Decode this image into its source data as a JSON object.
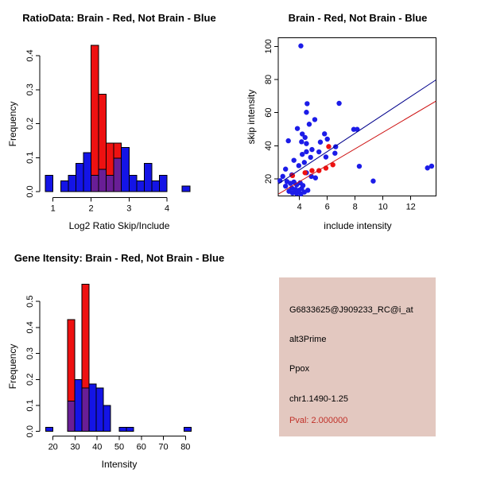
{
  "figure": {
    "background": "#FFFFFF",
    "colors": {
      "hist_red": "#EE1111",
      "hist_blue": "#1414E6",
      "overlap_purple": "#691E96",
      "point_blue": "#1C1CE8",
      "point_red": "#EE1111",
      "line_blue": "#00008B",
      "line_red": "#CD1010",
      "axis": "#000000",
      "info_bg": "#E3C8C0",
      "pval_red": "#C03028"
    }
  },
  "chart_data": [
    {
      "type": "bar",
      "subtype": "overlaid-histogram",
      "panel": "top-left",
      "title": "RatioData: Brain - Red, Not Brain - Blue",
      "xlabel": "Log2 Ratio Skip/Include",
      "ylabel": "Frequency",
      "legend": "Brain = red, Not Brain = blue (encoded in title)",
      "grid": false,
      "xticks": [
        1,
        2,
        3,
        4
      ],
      "ytick_labels": [
        "0.0",
        "0.1",
        "0.2",
        "0.3",
        "0.4"
      ],
      "xlim": [
        0.65,
        5.0
      ],
      "ylim": [
        0,
        0.45
      ],
      "bins": [
        {
          "x0": 0.8,
          "x1": 1.0,
          "blue": 0.048
        },
        {
          "x0": 1.2,
          "x1": 1.4,
          "blue": 0.032
        },
        {
          "x0": 1.4,
          "x1": 1.6,
          "blue": 0.048
        },
        {
          "x0": 1.6,
          "x1": 1.8,
          "blue": 0.083
        },
        {
          "x0": 1.8,
          "x1": 2.0,
          "blue": 0.115
        },
        {
          "x0": 2.0,
          "x1": 2.2,
          "red": 0.43,
          "blue": 0.048
        },
        {
          "x0": 2.2,
          "x1": 2.4,
          "red": 0.287,
          "blue": 0.066
        },
        {
          "x0": 2.4,
          "x1": 2.6,
          "red": 0.143,
          "blue": 0.048
        },
        {
          "x0": 2.6,
          "x1": 2.8,
          "red": 0.143,
          "blue": 0.098
        },
        {
          "x0": 2.8,
          "x1": 3.0,
          "blue": 0.13
        },
        {
          "x0": 3.0,
          "x1": 3.2,
          "blue": 0.048
        },
        {
          "x0": 3.2,
          "x1": 3.4,
          "blue": 0.032
        },
        {
          "x0": 3.4,
          "x1": 3.6,
          "blue": 0.083
        },
        {
          "x0": 3.6,
          "x1": 3.8,
          "blue": 0.032
        },
        {
          "x0": 3.8,
          "x1": 4.0,
          "blue": 0.048
        },
        {
          "x0": 4.4,
          "x1": 4.6,
          "blue": 0.016
        }
      ]
    },
    {
      "type": "scatter",
      "panel": "top-right",
      "title": "Brain - Red, Not Brain - Blue",
      "xlabel": "include intensity",
      "ylabel": "skip intensity",
      "grid": false,
      "xticks": [
        4,
        6,
        8,
        10,
        12
      ],
      "yticks": [
        20,
        40,
        60,
        80,
        100
      ],
      "xlim": [
        2.47,
        13.85
      ],
      "ylim": [
        9.7,
        105.5
      ],
      "series": [
        {
          "name": "Not Brain",
          "color_key": "point_blue",
          "points": [
            [
              4.1,
              100.3
            ],
            [
              4.55,
              65.4
            ],
            [
              6.85,
              65.6
            ],
            [
              4.5,
              60.2
            ],
            [
              5.1,
              55.8
            ],
            [
              4.7,
              53.0
            ],
            [
              3.85,
              50.4
            ],
            [
              7.9,
              49.9
            ],
            [
              8.15,
              49.9
            ],
            [
              4.2,
              47.1
            ],
            [
              5.8,
              47.2
            ],
            [
              4.4,
              45.0
            ],
            [
              6.0,
              44.0
            ],
            [
              3.2,
              43.0
            ],
            [
              4.15,
              42.4
            ],
            [
              5.5,
              42.2
            ],
            [
              4.5,
              41.3
            ],
            [
              6.6,
              39.4
            ],
            [
              4.9,
              37.7
            ],
            [
              4.5,
              36.4
            ],
            [
              5.4,
              36.3
            ],
            [
              6.55,
              35.5
            ],
            [
              4.2,
              34.8
            ],
            [
              5.9,
              33.2
            ],
            [
              4.8,
              33.0
            ],
            [
              3.6,
              31.2
            ],
            [
              4.35,
              29.9
            ],
            [
              3.95,
              28.0
            ],
            [
              8.3,
              27.6
            ],
            [
              13.5,
              27.7
            ],
            [
              13.2,
              26.6
            ],
            [
              3.0,
              25.9
            ],
            [
              4.5,
              23.7
            ],
            [
              3.45,
              22.4
            ],
            [
              2.8,
              21.5
            ],
            [
              4.85,
              21.5
            ],
            [
              5.15,
              20.6
            ],
            [
              2.6,
              18.9
            ],
            [
              9.3,
              18.7
            ],
            [
              3.1,
              18.4
            ],
            [
              3.6,
              18.1
            ],
            [
              4.05,
              17.6
            ],
            [
              3.8,
              16.4
            ],
            [
              4.25,
              16.0
            ],
            [
              3.0,
              15.6
            ],
            [
              3.35,
              17.3
            ],
            [
              3.45,
              14.4
            ],
            [
              4.15,
              14.1
            ],
            [
              3.7,
              13.6
            ],
            [
              3.95,
              13.1
            ],
            [
              4.6,
              13.1
            ],
            [
              3.25,
              12.5
            ],
            [
              4.35,
              12.0
            ],
            [
              3.5,
              11.5
            ],
            [
              3.8,
              11.2
            ],
            [
              4.1,
              10.9
            ]
          ]
        },
        {
          "name": "Brain",
          "color_key": "point_red",
          "points": [
            [
              3.5,
              22.0
            ],
            [
              4.4,
              23.7
            ],
            [
              4.9,
              25.0
            ],
            [
              5.4,
              25.0
            ],
            [
              5.9,
              26.5
            ],
            [
              6.4,
              28.5
            ],
            [
              6.1,
              39.5
            ]
          ]
        }
      ],
      "fit_lines": [
        {
          "name": "not-brain-fit",
          "color_key": "line_blue",
          "x1": 2.5,
          "y1": 17.1,
          "x2": 13.8,
          "y2": 79.7
        },
        {
          "name": "brain-fit",
          "color_key": "line_red",
          "x1": 2.5,
          "y1": 10.9,
          "x2": 13.8,
          "y2": 66.9
        }
      ]
    },
    {
      "type": "bar",
      "subtype": "overlaid-histogram",
      "panel": "bottom-left",
      "title": "Gene Itensity: Brain - Red, Not Brain - Blue",
      "xlabel": "Intensity",
      "ylabel": "Frequency",
      "legend": "Brain = red, Not Brain = blue (encoded in title)",
      "grid": false,
      "xticks": [
        20,
        30,
        40,
        50,
        60,
        70,
        80
      ],
      "ytick_labels": [
        "0.0",
        "0.1",
        "0.2",
        "0.3",
        "0.4",
        "0.5"
      ],
      "xlim": [
        14,
        86
      ],
      "ylim": [
        0,
        0.58
      ],
      "bins": [
        {
          "x0": 16.7,
          "x1": 19.9,
          "blue": 0.016
        },
        {
          "x0": 26.6,
          "x1": 29.8,
          "red": 0.43,
          "blue": 0.117
        },
        {
          "x0": 29.8,
          "x1": 33.1,
          "blue": 0.2
        },
        {
          "x0": 33.1,
          "x1": 36.4,
          "red": 0.567,
          "blue": 0.167
        },
        {
          "x0": 36.4,
          "x1": 39.6,
          "blue": 0.183
        },
        {
          "x0": 39.6,
          "x1": 42.8,
          "blue": 0.167
        },
        {
          "x0": 42.8,
          "x1": 46.0,
          "blue": 0.1
        },
        {
          "x0": 50.0,
          "x1": 53.2,
          "blue": 0.016
        },
        {
          "x0": 53.2,
          "x1": 56.4,
          "blue": 0.016
        },
        {
          "x0": 79.4,
          "x1": 82.6,
          "blue": 0.016
        }
      ]
    }
  ],
  "info_panel": {
    "probe_id": "G6833625@J909233_RC@i_at",
    "splice_type": "alt3Prime",
    "gene": "Ppox",
    "location": "chr1.1490-1.25",
    "pval_text": "Pval: 2.000000"
  }
}
